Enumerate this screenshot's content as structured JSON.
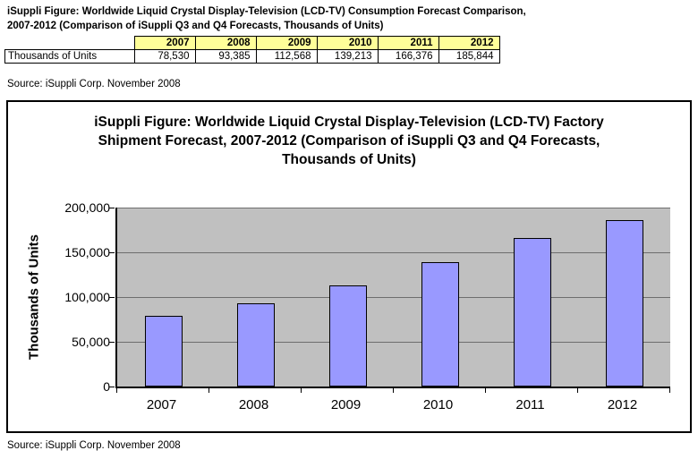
{
  "top": {
    "title_lines": [
      "iSuppli Figure: Worldwide Liquid Crystal Display-Television (LCD-TV) Consumption Forecast Comparison,",
      "2007-2012 (Comparison of iSuppli Q3 and Q4 Forecasts, Thousands of Units)"
    ],
    "source": "Source: iSuppli Corp. November 2008"
  },
  "table": {
    "row_label": "Thousands of Units",
    "years": [
      "2007",
      "2008",
      "2009",
      "2010",
      "2011",
      "2012"
    ],
    "values": [
      "78,530",
      "93,385",
      "112,568",
      "139,213",
      "166,376",
      "185,844"
    ],
    "header_bg": "#FFFF99"
  },
  "chart": {
    "title": "iSuppli Figure: Worldwide Liquid Crystal Display-Television (LCD-TV) Factory Shipment Forecast,  2007-2012 (Comparison of iSuppli Q3 and Q4 Forecasts, Thousands of Units)",
    "source": "Source: iSuppli Corp. November 2008",
    "bar_color": "#9999FF",
    "plot_bg": "#C0C0C0"
  },
  "chart_data": {
    "type": "bar",
    "categories": [
      "2007",
      "2008",
      "2009",
      "2010",
      "2011",
      "2012"
    ],
    "values": [
      78530,
      93385,
      112568,
      139213,
      166376,
      185844
    ],
    "title": "iSuppli Figure: Worldwide Liquid Crystal Display-Television (LCD-TV) Factory Shipment Forecast, 2007-2012 (Comparison of iSuppli Q3 and Q4 Forecasts, Thousands of Units)",
    "xlabel": "",
    "ylabel": "Thousands of Units",
    "ylim": [
      0,
      200000
    ],
    "yticks": [
      0,
      50000,
      100000,
      150000,
      200000
    ],
    "grid": true,
    "legend": false
  }
}
